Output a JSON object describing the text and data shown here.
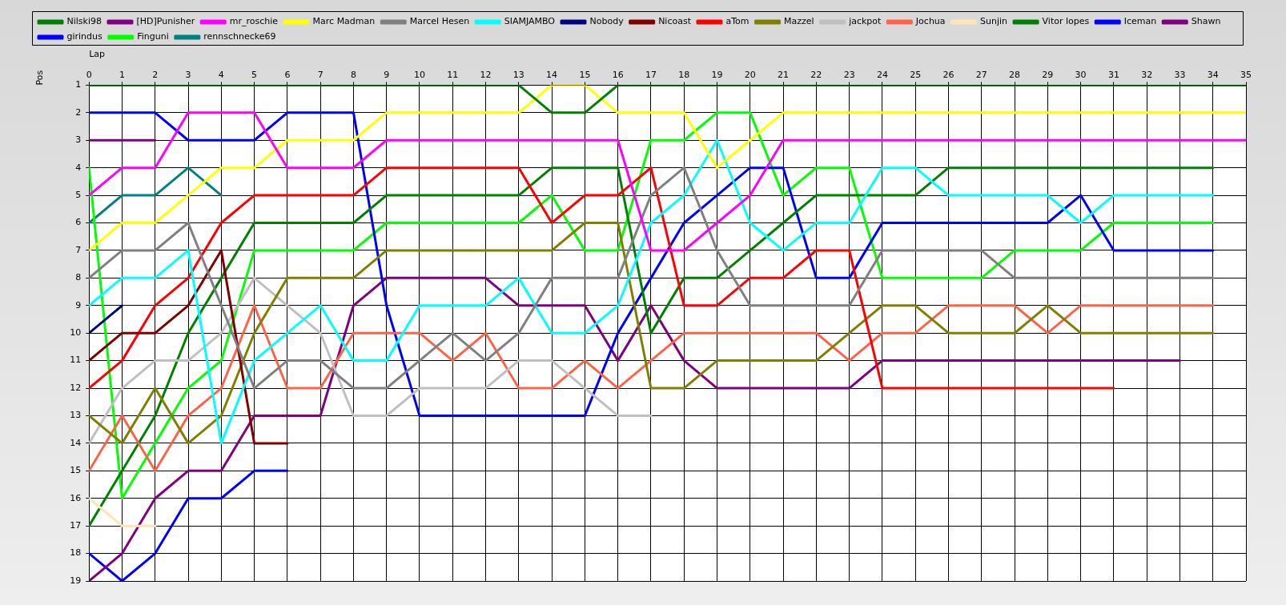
{
  "chart_data": {
    "type": "line",
    "xlabel": "Lap",
    "ylabel": "Pos",
    "x": [
      0,
      1,
      2,
      3,
      4,
      5,
      6,
      7,
      8,
      9,
      10,
      11,
      12,
      13,
      14,
      15,
      16,
      17,
      18,
      19,
      20,
      21,
      22,
      23,
      24,
      25,
      26,
      27,
      28,
      29,
      30,
      31,
      32,
      33,
      34,
      35
    ],
    "xlim": [
      0,
      35
    ],
    "xticks": [
      0,
      1,
      2,
      3,
      4,
      5,
      6,
      7,
      8,
      9,
      10,
      11,
      12,
      13,
      14,
      15,
      16,
      17,
      18,
      19,
      20,
      21,
      22,
      23,
      24,
      25,
      26,
      27,
      28,
      29,
      30,
      31,
      32,
      33,
      34,
      35
    ],
    "ylim": [
      19,
      1
    ],
    "yticks": [
      1,
      2,
      3,
      4,
      5,
      6,
      7,
      8,
      9,
      10,
      11,
      12,
      13,
      14,
      15,
      16,
      17,
      18,
      19
    ],
    "grid": true,
    "legend": "top",
    "marker": "none",
    "line_style": "solid",
    "series": [
      {
        "name": "Nilski98",
        "color": "#008000",
        "values": [
          1,
          1,
          1,
          1,
          1,
          1,
          1,
          1,
          1,
          1,
          1,
          1,
          1,
          1,
          2,
          2,
          1,
          1,
          1,
          1,
          1,
          1,
          1,
          1,
          1,
          1,
          1,
          1,
          1,
          1,
          1,
          1,
          1,
          1,
          1,
          1
        ]
      },
      {
        "name": "[HD]Punisher",
        "color": "#800080",
        "values": [
          3,
          3,
          3,
          null,
          null,
          null,
          null,
          null,
          null,
          null,
          null,
          null,
          null,
          null,
          null,
          null,
          null,
          null,
          null,
          null,
          null,
          null,
          null,
          null,
          null,
          null,
          null,
          null,
          null,
          null,
          null,
          null,
          null,
          null,
          null,
          null
        ]
      },
      {
        "name": "mr_roschie",
        "color": "#ff00ff",
        "values": [
          5,
          4,
          4,
          2,
          2,
          2,
          4,
          4,
          4,
          3,
          3,
          3,
          3,
          3,
          3,
          3,
          3,
          7,
          7,
          6,
          5,
          3,
          3,
          3,
          3,
          3,
          3,
          3,
          3,
          3,
          3,
          3,
          3,
          3,
          3,
          3
        ]
      },
      {
        "name": "Marc Madman",
        "color": "#ffff00",
        "values": [
          7,
          6,
          6,
          5,
          4,
          4,
          3,
          3,
          3,
          2,
          2,
          2,
          2,
          2,
          1,
          1,
          2,
          2,
          2,
          4,
          3,
          2,
          2,
          2,
          2,
          2,
          2,
          2,
          2,
          2,
          2,
          2,
          2,
          2,
          2,
          2
        ]
      },
      {
        "name": "Marcel Hesen",
        "color": "#808080",
        "values": [
          8,
          7,
          7,
          6,
          9,
          12,
          11,
          11,
          12,
          12,
          11,
          10,
          11,
          10,
          8,
          8,
          8,
          5,
          4,
          7,
          9,
          9,
          9,
          9,
          7,
          7,
          7,
          7,
          8,
          8,
          8,
          8,
          8,
          8,
          8,
          null
        ]
      },
      {
        "name": "SIAMJAMBO",
        "color": "#00ffff",
        "values": [
          9,
          8,
          8,
          7,
          14,
          11,
          10,
          9,
          11,
          11,
          9,
          9,
          9,
          8,
          10,
          10,
          9,
          6,
          5,
          3,
          6,
          7,
          6,
          6,
          4,
          4,
          5,
          5,
          5,
          5,
          6,
          5,
          5,
          5,
          5,
          null
        ]
      },
      {
        "name": "Nobody",
        "color": "#000080",
        "values": [
          10,
          9,
          null,
          null,
          null,
          null,
          null,
          null,
          null,
          null,
          null,
          null,
          null,
          null,
          null,
          null,
          null,
          null,
          null,
          null,
          null,
          null,
          null,
          null,
          null,
          null,
          null,
          null,
          null,
          null,
          null,
          null,
          null,
          null,
          null,
          null
        ]
      },
      {
        "name": "Nicoast",
        "color": "#800000",
        "values": [
          11,
          10,
          10,
          9,
          7,
          14,
          14,
          null,
          null,
          null,
          null,
          null,
          null,
          null,
          null,
          null,
          null,
          null,
          null,
          null,
          null,
          null,
          null,
          null,
          null,
          null,
          null,
          null,
          null,
          null,
          null,
          null,
          null,
          null,
          null,
          null
        ]
      },
      {
        "name": "aTom",
        "color": "#ff0000",
        "values": [
          12,
          11,
          9,
          8,
          6,
          5,
          5,
          5,
          5,
          4,
          4,
          4,
          4,
          4,
          6,
          5,
          5,
          4,
          9,
          9,
          8,
          8,
          7,
          7,
          12,
          12,
          12,
          12,
          12,
          12,
          12,
          12,
          null,
          null,
          null,
          null
        ]
      },
      {
        "name": "Mazzel",
        "color": "#808000",
        "values": [
          13,
          14,
          12,
          14,
          13,
          10,
          8,
          8,
          8,
          7,
          7,
          7,
          7,
          7,
          7,
          6,
          6,
          12,
          12,
          11,
          11,
          11,
          11,
          10,
          9,
          9,
          10,
          10,
          10,
          9,
          10,
          10,
          10,
          10,
          10,
          null
        ]
      },
      {
        "name": "jackpot",
        "color": "#c0c0c0",
        "values": [
          14,
          12,
          11,
          11,
          10,
          8,
          9,
          10,
          13,
          13,
          12,
          12,
          12,
          11,
          11,
          12,
          13,
          13,
          null,
          null,
          null,
          null,
          null,
          null,
          null,
          null,
          null,
          null,
          null,
          null,
          null,
          null,
          null,
          null,
          null,
          null
        ]
      },
      {
        "name": "Jochua",
        "color": "#ff6347",
        "values": [
          15,
          13,
          15,
          13,
          12,
          9,
          12,
          12,
          10,
          10,
          10,
          11,
          10,
          12,
          12,
          11,
          12,
          11,
          10,
          10,
          10,
          10,
          10,
          11,
          10,
          10,
          9,
          9,
          9,
          10,
          9,
          9,
          9,
          9,
          9,
          null
        ]
      },
      {
        "name": "Sunjin",
        "color": "#ffe4b5",
        "values": [
          16,
          17,
          17,
          null,
          null,
          null,
          null,
          null,
          null,
          null,
          null,
          null,
          null,
          null,
          null,
          null,
          null,
          null,
          null,
          null,
          null,
          null,
          null,
          null,
          null,
          null,
          null,
          null,
          null,
          null,
          null,
          null,
          null,
          null,
          null,
          null
        ]
      },
      {
        "name": "Vitor lopes",
        "color": "#008000",
        "values": [
          17,
          15,
          13,
          10,
          8,
          6,
          6,
          6,
          6,
          5,
          5,
          5,
          5,
          5,
          4,
          4,
          4,
          10,
          8,
          8,
          7,
          6,
          5,
          5,
          5,
          5,
          4,
          4,
          4,
          4,
          4,
          4,
          4,
          4,
          4,
          null
        ]
      },
      {
        "name": "Iceman",
        "color": "#0000ff",
        "values": [
          2,
          2,
          2,
          3,
          3,
          3,
          2,
          2,
          2,
          9,
          13,
          13,
          13,
          13,
          13,
          13,
          10,
          8,
          6,
          5,
          4,
          4,
          8,
          8,
          6,
          6,
          6,
          6,
          6,
          6,
          5,
          7,
          7,
          7,
          7,
          null
        ]
      },
      {
        "name": "Shawn",
        "color": "#800080",
        "values": [
          19,
          18,
          16,
          15,
          15,
          13,
          13,
          13,
          9,
          8,
          8,
          8,
          8,
          9,
          9,
          9,
          11,
          9,
          11,
          12,
          12,
          12,
          12,
          12,
          11,
          11,
          11,
          11,
          11,
          11,
          11,
          11,
          11,
          11,
          null,
          null
        ]
      },
      {
        "name": "girindus",
        "color": "#0000ff",
        "values": [
          18,
          19,
          18,
          16,
          16,
          15,
          15,
          null,
          null,
          null,
          null,
          null,
          null,
          null,
          null,
          null,
          null,
          null,
          null,
          null,
          null,
          null,
          null,
          null,
          null,
          null,
          null,
          null,
          null,
          null,
          null,
          null,
          null,
          null,
          null,
          null
        ]
      },
      {
        "name": "Finguni",
        "color": "#00ff00",
        "values": [
          4,
          16,
          14,
          12,
          11,
          7,
          7,
          7,
          7,
          6,
          6,
          6,
          6,
          6,
          5,
          7,
          7,
          3,
          3,
          2,
          2,
          5,
          4,
          4,
          8,
          8,
          8,
          8,
          7,
          7,
          7,
          6,
          6,
          6,
          6,
          null
        ]
      },
      {
        "name": "rennschnecke69",
        "color": "#008080",
        "values": [
          6,
          5,
          5,
          4,
          5,
          null,
          null,
          null,
          null,
          null,
          null,
          null,
          null,
          null,
          null,
          null,
          null,
          null,
          null,
          null,
          null,
          null,
          null,
          null,
          null,
          null,
          null,
          null,
          null,
          null,
          null,
          null,
          null,
          null,
          null,
          null
        ]
      }
    ]
  }
}
